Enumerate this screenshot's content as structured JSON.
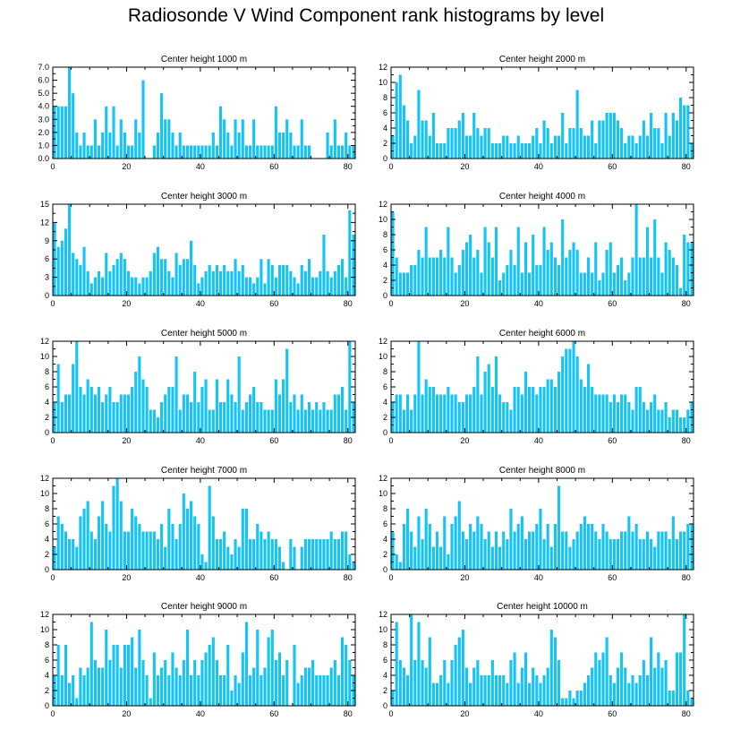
{
  "title": "Radiosonde V Wind Component rank histograms by level",
  "chart_data": [
    {
      "type": "bar",
      "title": "Center height 1000 m",
      "ylim": [
        0,
        7
      ],
      "ytick_values": [
        0,
        1,
        2,
        3,
        4,
        5,
        6,
        7
      ],
      "ytick_labels": [
        "0.0",
        "1.0",
        "2.0",
        "3.0",
        "4.0",
        "5.0",
        "6.0",
        "7.0"
      ],
      "xlim": [
        0,
        82
      ],
      "xtick_values": [
        0,
        20,
        40,
        60,
        80
      ],
      "xtick_labels": [
        "0",
        "20",
        "40",
        "60",
        "80"
      ],
      "values": [
        4,
        4,
        4,
        4,
        7,
        5,
        2,
        1,
        2,
        1,
        1,
        3,
        1,
        2,
        4,
        2,
        4,
        1,
        3,
        2,
        1,
        1,
        3,
        2,
        6,
        0,
        0,
        1,
        2,
        5,
        3,
        3,
        2,
        1,
        2,
        1,
        1,
        1,
        1,
        1,
        1,
        1,
        1,
        2,
        1,
        4,
        3,
        2,
        1,
        3,
        2,
        3,
        1,
        1,
        3,
        1,
        1,
        1,
        1,
        1,
        4,
        2,
        2,
        3,
        2,
        1,
        1,
        3,
        1,
        1,
        0,
        0,
        0,
        0,
        2,
        1,
        3,
        1,
        1,
        2,
        1,
        1
      ]
    },
    {
      "type": "bar",
      "title": "Center height 2000 m",
      "ylim": [
        0,
        12
      ],
      "ytick_values": [
        0,
        2,
        4,
        6,
        8,
        10,
        12
      ],
      "ytick_labels": [
        "0",
        "2",
        "4",
        "6",
        "8",
        "10",
        "12"
      ],
      "xlim": [
        0,
        82
      ],
      "xtick_values": [
        0,
        20,
        40,
        60,
        80
      ],
      "xtick_labels": [
        "0",
        "20",
        "40",
        "60",
        "80"
      ],
      "values": [
        3,
        10,
        11,
        7,
        5,
        2,
        3,
        9,
        5,
        5,
        3,
        6,
        2,
        2,
        2,
        4,
        4,
        4,
        5,
        6,
        3,
        3,
        6,
        4,
        3,
        4,
        4,
        2,
        2,
        2,
        3,
        3,
        2,
        2,
        3,
        2,
        2,
        2,
        3,
        4,
        2,
        5,
        4,
        2,
        3,
        3,
        6,
        2,
        4,
        4,
        9,
        4,
        3,
        3,
        5,
        2,
        5,
        5,
        6,
        6,
        6,
        5,
        4,
        2,
        3,
        3,
        2,
        3,
        5,
        3,
        6,
        4,
        4,
        2,
        6,
        3,
        6,
        5,
        8,
        7,
        7,
        2
      ]
    },
    {
      "type": "bar",
      "title": "Center height 3000 m",
      "ylim": [
        0,
        15
      ],
      "ytick_values": [
        0,
        3,
        6,
        9,
        12,
        15
      ],
      "ytick_labels": [
        "0",
        "3",
        "6",
        "9",
        "12",
        "15"
      ],
      "xlim": [
        0,
        82
      ],
      "xtick_values": [
        0,
        20,
        40,
        60,
        80
      ],
      "xtick_labels": [
        "0",
        "20",
        "40",
        "60",
        "80"
      ],
      "values": [
        12,
        8,
        9,
        11,
        15,
        7,
        6,
        5,
        8,
        4,
        2,
        3,
        4,
        3,
        7,
        4,
        5,
        6,
        7,
        6,
        4,
        3,
        3,
        2,
        3,
        3,
        4,
        7,
        8,
        6,
        6,
        4,
        3,
        7,
        5,
        6,
        6,
        9,
        5,
        2,
        3,
        4,
        5,
        4,
        5,
        4,
        5,
        4,
        4,
        6,
        4,
        5,
        3,
        3,
        2,
        3,
        6,
        2,
        6,
        5,
        3,
        5,
        5,
        5,
        4,
        3,
        2,
        5,
        4,
        6,
        3,
        3,
        4,
        10,
        4,
        3,
        4,
        5,
        6,
        3,
        14,
        10
      ]
    },
    {
      "type": "bar",
      "title": "Center height 4000 m",
      "ylim": [
        0,
        12
      ],
      "ytick_values": [
        0,
        2,
        4,
        6,
        8,
        10,
        12
      ],
      "ytick_labels": [
        "0",
        "2",
        "4",
        "6",
        "8",
        "10",
        "12"
      ],
      "xlim": [
        0,
        82
      ],
      "xtick_values": [
        0,
        20,
        40,
        60,
        80
      ],
      "xtick_labels": [
        "0",
        "20",
        "40",
        "60",
        "80"
      ],
      "values": [
        11,
        5,
        3,
        3,
        3,
        4,
        4,
        6,
        5,
        9,
        5,
        5,
        5,
        6,
        5,
        9,
        5,
        3,
        4,
        6,
        7,
        8,
        5,
        6,
        3,
        9,
        7,
        5,
        9,
        2,
        3,
        4,
        6,
        4,
        9,
        3,
        7,
        3,
        8,
        4,
        4,
        9,
        6,
        7,
        5,
        4,
        10,
        5,
        6,
        7,
        6,
        3,
        3,
        5,
        3,
        7,
        2,
        3,
        6,
        7,
        3,
        4,
        5,
        2,
        3,
        5,
        12,
        5,
        5,
        9,
        5,
        10,
        5,
        3,
        7,
        6,
        5,
        4,
        1,
        8,
        7,
        7
      ]
    },
    {
      "type": "bar",
      "title": "Center height 5000 m",
      "ylim": [
        0,
        12
      ],
      "ytick_values": [
        0,
        2,
        4,
        6,
        8,
        10,
        12
      ],
      "ytick_labels": [
        "0",
        "2",
        "4",
        "6",
        "8",
        "10",
        "12"
      ],
      "xlim": [
        0,
        82
      ],
      "xtick_values": [
        0,
        20,
        40,
        60,
        80
      ],
      "xtick_labels": [
        "0",
        "20",
        "40",
        "60",
        "80"
      ],
      "values": [
        4,
        9,
        4,
        5,
        5,
        9,
        12,
        6,
        5,
        7,
        6,
        5,
        6,
        4,
        5,
        6,
        4,
        4,
        5,
        5,
        5,
        6,
        8,
        10,
        7,
        6,
        3,
        3,
        2,
        4,
        5,
        6,
        6,
        10,
        3,
        5,
        5,
        4,
        8,
        4,
        6,
        7,
        3,
        3,
        7,
        4,
        4,
        7,
        5,
        4,
        10,
        3,
        4,
        5,
        6,
        4,
        4,
        3,
        3,
        3,
        7,
        5,
        7,
        11,
        4,
        5,
        3,
        5,
        3,
        4,
        3,
        4,
        3,
        4,
        3,
        3,
        5,
        5,
        6,
        3,
        12,
        4
      ]
    },
    {
      "type": "bar",
      "title": "Center height 6000 m",
      "ylim": [
        0,
        12
      ],
      "ytick_values": [
        0,
        2,
        4,
        6,
        8,
        10,
        12
      ],
      "ytick_labels": [
        "0",
        "2",
        "4",
        "6",
        "8",
        "10",
        "12"
      ],
      "xlim": [
        0,
        82
      ],
      "xtick_values": [
        0,
        20,
        40,
        60,
        80
      ],
      "xtick_labels": [
        "0",
        "20",
        "40",
        "60",
        "80"
      ],
      "values": [
        4,
        5,
        5,
        3,
        5,
        3,
        5,
        12,
        5,
        7,
        6,
        6,
        5,
        5,
        5,
        6,
        5,
        5,
        4,
        4,
        5,
        5,
        6,
        10,
        5,
        8,
        9,
        6,
        10,
        5,
        4,
        4,
        3,
        6,
        6,
        5,
        8,
        6,
        6,
        5,
        6,
        6,
        7,
        7,
        6,
        8,
        10,
        11,
        11,
        12,
        10,
        7,
        6,
        9,
        6,
        5,
        5,
        5,
        5,
        4,
        5,
        4,
        5,
        5,
        4,
        3,
        6,
        6,
        4,
        3,
        4,
        5,
        3,
        3,
        4,
        2,
        3,
        3,
        2,
        2,
        3,
        4
      ]
    },
    {
      "type": "bar",
      "title": "Center height 7000 m",
      "ylim": [
        0,
        12
      ],
      "ytick_values": [
        0,
        2,
        4,
        6,
        8,
        10,
        12
      ],
      "ytick_labels": [
        "0",
        "2",
        "4",
        "6",
        "8",
        "10",
        "12"
      ],
      "xlim": [
        0,
        82
      ],
      "xtick_values": [
        0,
        20,
        40,
        60,
        80
      ],
      "xtick_labels": [
        "0",
        "20",
        "40",
        "60",
        "80"
      ],
      "values": [
        3,
        7,
        6,
        5,
        4,
        4,
        3,
        7,
        8,
        9,
        5,
        4,
        7,
        9,
        6,
        5,
        11,
        12,
        9,
        5,
        5,
        8,
        7,
        6,
        5,
        5,
        5,
        5,
        4,
        6,
        3,
        8,
        6,
        4,
        6,
        10,
        8,
        9,
        7,
        6,
        2,
        1,
        11,
        7,
        4,
        4,
        5,
        3,
        2,
        4,
        3,
        8,
        8,
        4,
        4,
        6,
        5,
        4,
        5,
        4,
        4,
        3,
        1,
        0,
        4,
        3,
        0,
        3,
        4,
        4,
        4,
        4,
        4,
        4,
        4,
        5,
        4,
        4,
        5,
        5,
        2,
        1
      ]
    },
    {
      "type": "bar",
      "title": "Center height 8000 m",
      "ylim": [
        0,
        12
      ],
      "ytick_values": [
        0,
        2,
        4,
        6,
        8,
        10,
        12
      ],
      "ytick_labels": [
        "0",
        "2",
        "4",
        "6",
        "8",
        "10",
        "12"
      ],
      "xlim": [
        0,
        82
      ],
      "xtick_values": [
        0,
        20,
        40,
        60,
        80
      ],
      "xtick_labels": [
        "0",
        "20",
        "40",
        "60",
        "80"
      ],
      "values": [
        5,
        2,
        1,
        6,
        8,
        5,
        3,
        7,
        4,
        8,
        6,
        3,
        5,
        3,
        7,
        2,
        6,
        7,
        9,
        5,
        4,
        6,
        5,
        7,
        6,
        4,
        5,
        3,
        5,
        3,
        5,
        4,
        8,
        5,
        6,
        7,
        4,
        5,
        5,
        6,
        8,
        4,
        6,
        3,
        6,
        11,
        5,
        5,
        3,
        4,
        5,
        6,
        7,
        6,
        6,
        5,
        4,
        6,
        5,
        4,
        4,
        4,
        5,
        5,
        7,
        5,
        6,
        4,
        4,
        5,
        4,
        3,
        5,
        5,
        5,
        4,
        7,
        4,
        5,
        5,
        6,
        6
      ]
    },
    {
      "type": "bar",
      "title": "Center height 9000 m",
      "ylim": [
        0,
        12
      ],
      "ytick_values": [
        0,
        2,
        4,
        6,
        8,
        10,
        12
      ],
      "ytick_labels": [
        "0",
        "2",
        "4",
        "6",
        "8",
        "10",
        "12"
      ],
      "xlim": [
        0,
        82
      ],
      "xtick_values": [
        0,
        20,
        40,
        60,
        80
      ],
      "xtick_labels": [
        "0",
        "20",
        "40",
        "60",
        "80"
      ],
      "values": [
        4,
        8,
        4,
        8,
        3,
        4,
        1,
        5,
        4,
        5,
        11,
        6,
        5,
        5,
        10,
        6,
        8,
        8,
        5,
        8,
        8,
        9,
        5,
        10,
        6,
        4,
        1,
        7,
        4,
        5,
        6,
        4,
        7,
        5,
        4,
        6,
        10,
        4,
        6,
        4,
        6,
        7,
        8,
        9,
        6,
        4,
        4,
        8,
        2,
        4,
        3,
        7,
        11,
        4,
        5,
        10,
        4,
        5,
        9,
        10,
        6,
        7,
        4,
        6,
        0,
        8,
        3,
        4,
        5,
        5,
        6,
        4,
        4,
        4,
        4,
        5,
        6,
        4,
        9,
        8,
        6,
        4
      ]
    },
    {
      "type": "bar",
      "title": "Center height 10000 m",
      "ylim": [
        0,
        12
      ],
      "ytick_values": [
        0,
        2,
        4,
        6,
        8,
        10,
        12
      ],
      "ytick_labels": [
        "0",
        "2",
        "4",
        "6",
        "8",
        "10",
        "12"
      ],
      "xlim": [
        0,
        82
      ],
      "xtick_values": [
        0,
        20,
        40,
        60,
        80
      ],
      "xtick_labels": [
        "0",
        "20",
        "40",
        "60",
        "80"
      ],
      "values": [
        2,
        11,
        6,
        5,
        4,
        12,
        6,
        11,
        6,
        5,
        9,
        3,
        3,
        4,
        6,
        3,
        6,
        8,
        9,
        10,
        5,
        3,
        5,
        6,
        4,
        4,
        4,
        6,
        4,
        4,
        4,
        3,
        6,
        7,
        3,
        5,
        7,
        3,
        5,
        4,
        3,
        4,
        5,
        10,
        9,
        6,
        1,
        1,
        2,
        1,
        2,
        2,
        3,
        4,
        5,
        7,
        6,
        7,
        9,
        4,
        3,
        5,
        7,
        5,
        3,
        4,
        3,
        4,
        6,
        4,
        9,
        5,
        7,
        5,
        6,
        2,
        2,
        7,
        7,
        12,
        2,
        1
      ]
    }
  ]
}
